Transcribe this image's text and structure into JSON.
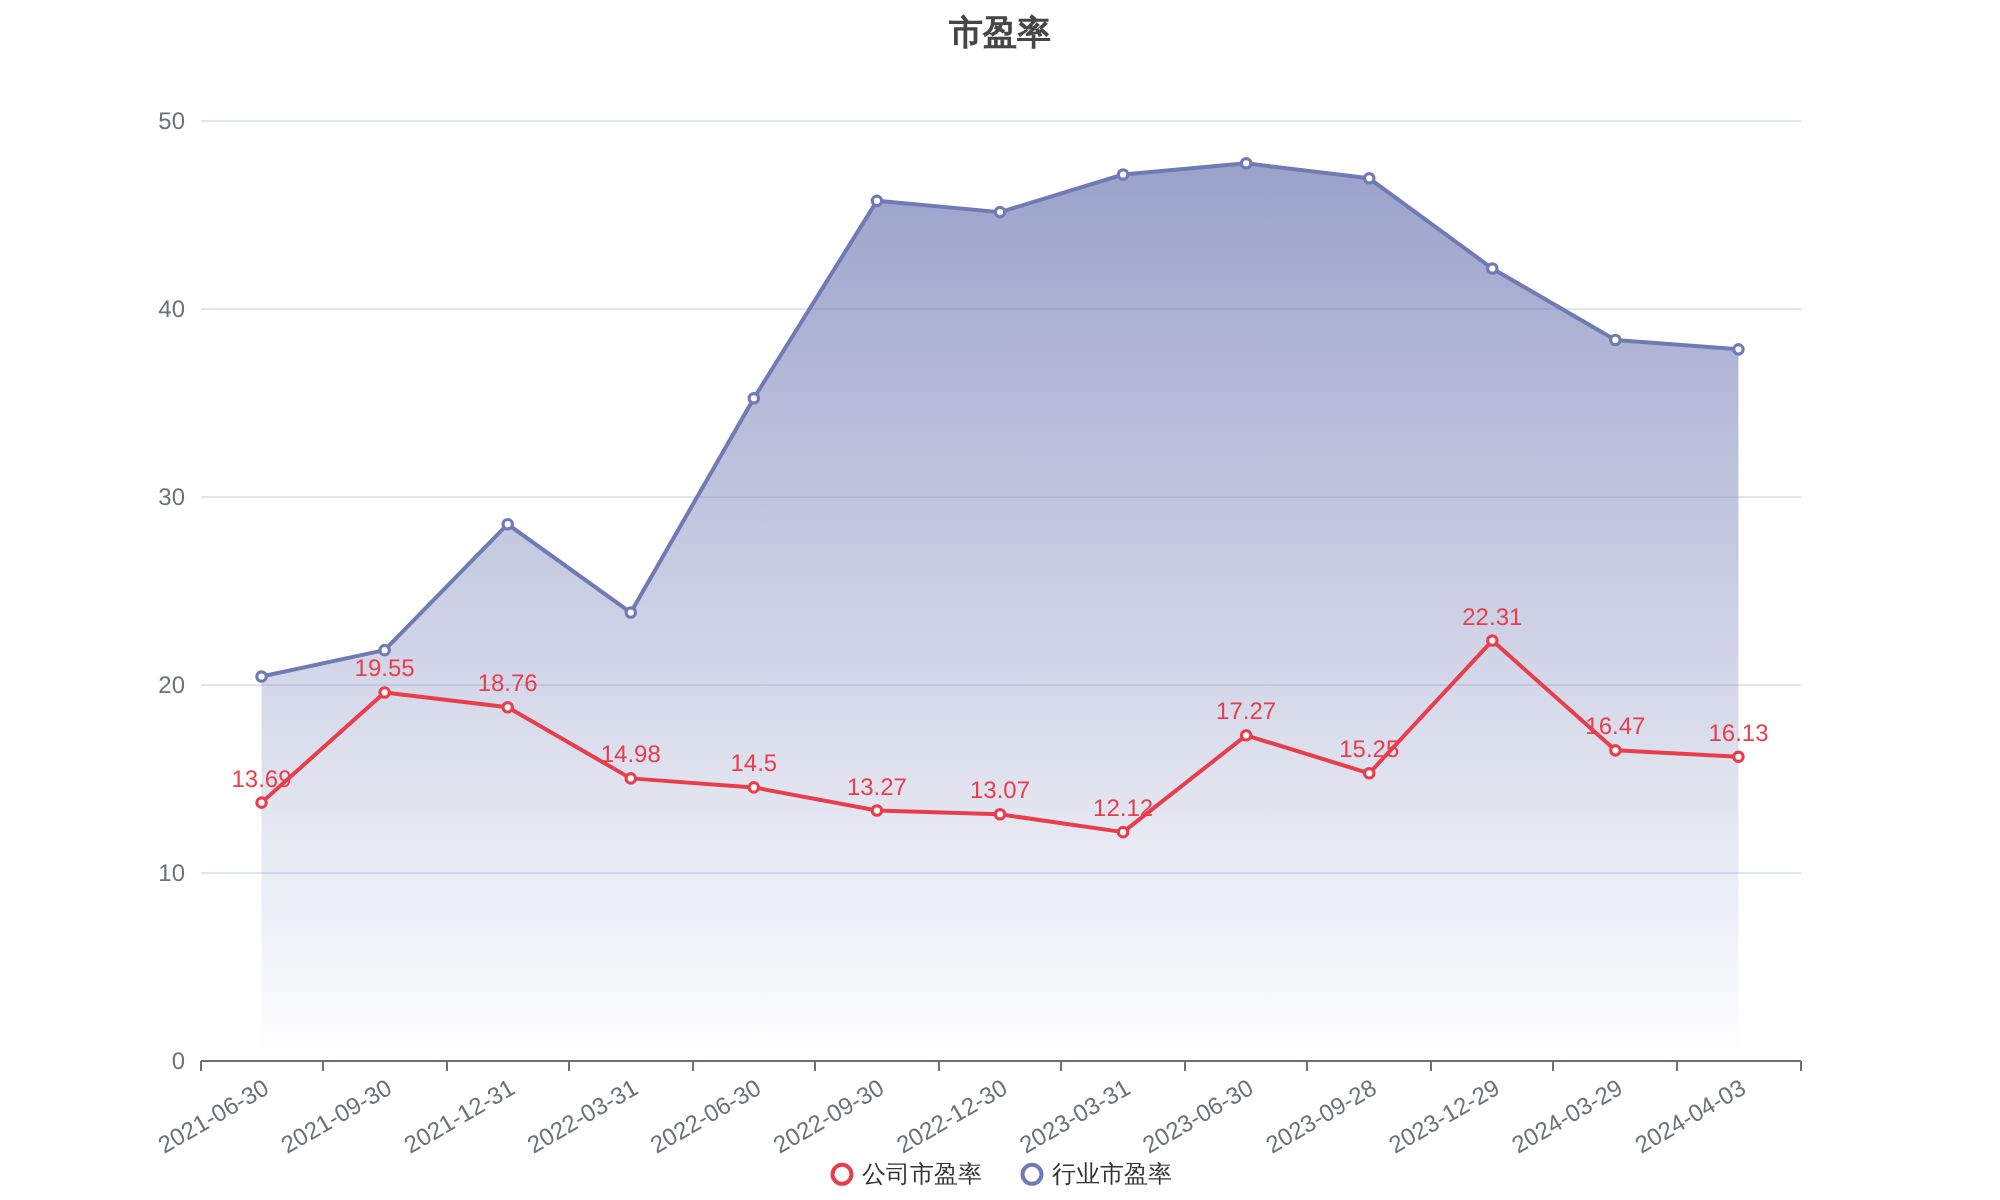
{
  "chart_data": {
    "type": "line",
    "title": "市盈率",
    "categories": [
      "2021-06-30",
      "2021-09-30",
      "2021-12-31",
      "2022-03-31",
      "2022-06-30",
      "2022-09-30",
      "2022-12-30",
      "2023-03-31",
      "2023-06-30",
      "2023-09-28",
      "2023-12-29",
      "2024-03-29",
      "2024-04-03"
    ],
    "series": [
      {
        "name": "公司市盈率",
        "color": "#e83e4c",
        "values": [
          13.69,
          19.55,
          18.76,
          14.98,
          14.5,
          13.27,
          13.07,
          12.12,
          17.27,
          15.25,
          22.31,
          16.47,
          16.13
        ],
        "value_labels": [
          "13.69",
          "19.55",
          "18.76",
          "14.98",
          "14.5",
          "13.27",
          "13.07",
          "12.12",
          "17.27",
          "15.25",
          "22.31",
          "16.47",
          "16.13"
        ]
      },
      {
        "name": "行业市盈率",
        "type": "area",
        "color": "#707ab4",
        "values": [
          20.4,
          21.8,
          28.5,
          23.8,
          35.2,
          45.7,
          45.1,
          47.1,
          47.7,
          46.9,
          42.1,
          38.3,
          37.8
        ]
      }
    ],
    "ylim": [
      0,
      50
    ],
    "yticks": [
      0,
      10,
      20,
      30,
      40,
      50
    ],
    "grid": "y",
    "legend": "bottom",
    "marker": "circle"
  }
}
